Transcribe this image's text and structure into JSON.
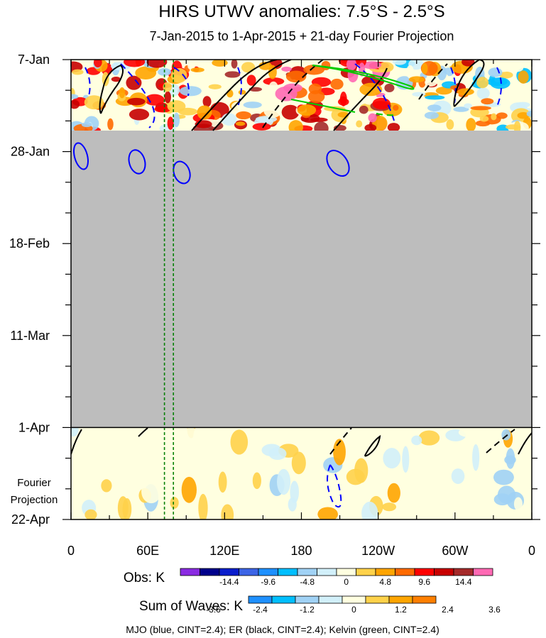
{
  "chart_data": {
    "type": "heatmap",
    "title": "HIRS UTWV anomalies: 7.5°S - 2.5°S",
    "subtitle": "7-Jan-2015 to 1-Apr-2015 + 21-day Fourier Projection",
    "x_ticks": [
      {
        "label": "0",
        "lon": 0
      },
      {
        "label": "60E",
        "lon": 60
      },
      {
        "label": "120E",
        "lon": 120
      },
      {
        "label": "180",
        "lon": 180
      },
      {
        "label": "120W",
        "lon": 240
      },
      {
        "label": "60W",
        "lon": 300
      },
      {
        "label": "0",
        "lon": 360
      }
    ],
    "y_ticks": [
      {
        "label": "7-Jan",
        "day": 0
      },
      {
        "label": "28-Jan",
        "day": 21
      },
      {
        "label": "18-Feb",
        "day": 42
      },
      {
        "label": "11-Mar",
        "day": 63
      },
      {
        "label": "1-Apr",
        "day": 84
      },
      {
        "label": "22-Apr",
        "day": 105
      }
    ],
    "xlim": [
      0,
      360
    ],
    "ylim_days": [
      0,
      105
    ],
    "obs_end_day": 16,
    "projection_start_day": 84,
    "projection_label": [
      "Fourier",
      "Projection"
    ],
    "missing_data_color": "#bdbdbd",
    "reference_longitudes": [
      73,
      80
    ],
    "obs_colorbar": {
      "label": "Obs: K",
      "levels": [
        "-14.4",
        "-9.6",
        "-4.8",
        "0",
        "4.8",
        "9.6",
        "14.4"
      ],
      "colors": [
        "#8a2be2",
        "#00008b",
        "#0a1ecc",
        "#3c64e6",
        "#1e90ff",
        "#00bfff",
        "#a0d2f5",
        "#d2f0fa",
        "#ffffe0",
        "#ffd24a",
        "#ffa500",
        "#ff6a00",
        "#ff0000",
        "#c80000",
        "#a52a2a",
        "#ff69b4"
      ]
    },
    "waves_colorbar": {
      "label": "Sum of Waves: K",
      "levels": [
        "-3.6",
        "-2.4",
        "-1.2",
        "0",
        "1.2",
        "2.4",
        "3.6"
      ],
      "colors": [
        "#1e90ff",
        "#00bfff",
        "#a0d2f5",
        "#d2f0fa",
        "#ffffe0",
        "#ffd24a",
        "#ffa500",
        "#ff7f00"
      ]
    },
    "contour_legend": "MJO (blue, CINT=2.4); ER (black, CINT=2.4); Kelvin (green, CINT=2.4)",
    "series": [
      {
        "name": "MJO",
        "color": "#0000ff"
      },
      {
        "name": "ER",
        "color": "#000000"
      },
      {
        "name": "Kelvin",
        "color": "#00cc00"
      }
    ]
  }
}
